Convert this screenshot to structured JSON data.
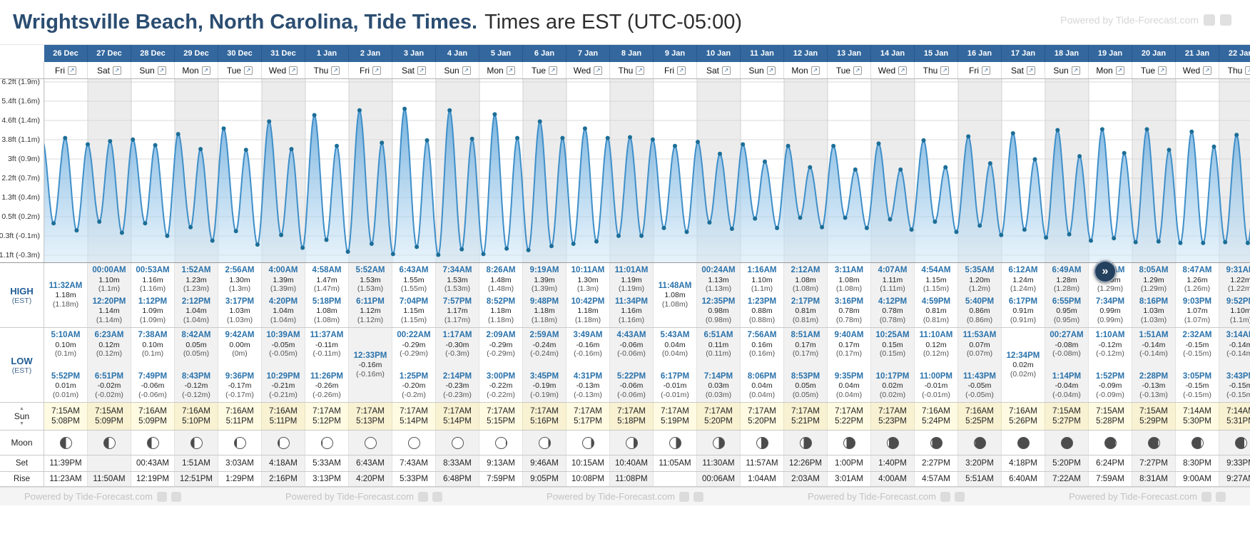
{
  "title": {
    "main": "Wrightsville Beach, North Carolina, Tide Times.",
    "suffix": "Times are EST (UTC-05:00)"
  },
  "powered_by": "Powered by Tide-Forecast.com",
  "labels": {
    "high": "HIGH",
    "low": "LOW",
    "est": "(EST)",
    "sun": "Sun",
    "moon": "Moon",
    "set": "Set",
    "rise": "Rise"
  },
  "scroll_right": "»",
  "chart": {
    "type": "area",
    "y_axis_labels": [
      "6.2ft (1.9m)",
      "5.4ft (1.6m)",
      "4.6ft (1.4m)",
      "3.8ft (1.1m)",
      "3ft (0.9m)",
      "2.2ft (0.7m)",
      "1.3ft (0.4m)",
      "0.5ft (0.2m)",
      "-0.3ft (-0.1m)",
      "-1.1ft (-0.3m)"
    ]
  },
  "days": [
    {
      "date": "26 Dec",
      "dow": "Fri",
      "highs": [
        {
          "time": "11:32AM",
          "v": "1.18m",
          "v2": "(1.18m)"
        }
      ],
      "lows": [
        {
          "time": "5:10AM",
          "v": "0.10m",
          "v2": "(0.1m)"
        },
        {
          "time": "5:52PM",
          "v": "0.01m",
          "v2": "(0.01m)"
        }
      ],
      "sun_rise": "7:15AM",
      "sun_set": "5:08PM",
      "moon": {
        "lit": 0.5,
        "waxing": true
      },
      "moon_set": "11:39PM",
      "moon_rise": "11:23AM"
    },
    {
      "date": "27 Dec",
      "dow": "Sat",
      "highs": [
        {
          "time": "00:00AM",
          "v": "1.10m",
          "v2": "(1.1m)"
        },
        {
          "time": "12:20PM",
          "v": "1.14m",
          "v2": "(1.14m)"
        }
      ],
      "lows": [
        {
          "time": "6:23AM",
          "v": "0.12m",
          "v2": "(0.12m)"
        },
        {
          "time": "6:51PM",
          "v": "-0.02m",
          "v2": "(-0.02m)"
        }
      ],
      "sun_rise": "7:15AM",
      "sun_set": "5:09PM",
      "moon": {
        "lit": 0.55,
        "waxing": true
      },
      "moon_set": "",
      "moon_rise": "11:50AM"
    },
    {
      "date": "28 Dec",
      "dow": "Sun",
      "highs": [
        {
          "time": "00:53AM",
          "v": "1.16m",
          "v2": "(1.16m)"
        },
        {
          "time": "1:12PM",
          "v": "1.09m",
          "v2": "(1.09m)"
        }
      ],
      "lows": [
        {
          "time": "7:38AM",
          "v": "0.10m",
          "v2": "(0.1m)"
        },
        {
          "time": "7:49PM",
          "v": "-0.06m",
          "v2": "(-0.06m)"
        }
      ],
      "sun_rise": "7:16AM",
      "sun_set": "5:09PM",
      "moon": {
        "lit": 0.63,
        "waxing": true
      },
      "moon_set": "00:43AM",
      "moon_rise": "12:19PM"
    },
    {
      "date": "29 Dec",
      "dow": "Mon",
      "highs": [
        {
          "time": "1:52AM",
          "v": "1.23m",
          "v2": "(1.23m)"
        },
        {
          "time": "2:12PM",
          "v": "1.04m",
          "v2": "(1.04m)"
        }
      ],
      "lows": [
        {
          "time": "8:42AM",
          "v": "0.05m",
          "v2": "(0.05m)"
        },
        {
          "time": "8:43PM",
          "v": "-0.12m",
          "v2": "(-0.12m)"
        }
      ],
      "sun_rise": "7:16AM",
      "sun_set": "5:10PM",
      "moon": {
        "lit": 0.71,
        "waxing": true
      },
      "moon_set": "1:51AM",
      "moon_rise": "12:51PM"
    },
    {
      "date": "30 Dec",
      "dow": "Tue",
      "highs": [
        {
          "time": "2:56AM",
          "v": "1.30m",
          "v2": "(1.3m)"
        },
        {
          "time": "3:17PM",
          "v": "1.03m",
          "v2": "(1.03m)"
        }
      ],
      "lows": [
        {
          "time": "9:42AM",
          "v": "0.00m",
          "v2": "(0m)"
        },
        {
          "time": "9:36PM",
          "v": "-0.17m",
          "v2": "(-0.17m)"
        }
      ],
      "sun_rise": "7:16AM",
      "sun_set": "5:11PM",
      "moon": {
        "lit": 0.79,
        "waxing": true
      },
      "moon_set": "3:03AM",
      "moon_rise": "1:29PM"
    },
    {
      "date": "31 Dec",
      "dow": "Wed",
      "highs": [
        {
          "time": "4:00AM",
          "v": "1.39m",
          "v2": "(1.39m)"
        },
        {
          "time": "4:20PM",
          "v": "1.04m",
          "v2": "(1.04m)"
        }
      ],
      "lows": [
        {
          "time": "10:39AM",
          "v": "-0.05m",
          "v2": "(-0.05m)"
        },
        {
          "time": "10:29PM",
          "v": "-0.21m",
          "v2": "(-0.21m)"
        }
      ],
      "sun_rise": "7:16AM",
      "sun_set": "5:11PM",
      "moon": {
        "lit": 0.87,
        "waxing": true
      },
      "moon_set": "4:18AM",
      "moon_rise": "2:16PM"
    },
    {
      "date": "1 Jan",
      "dow": "Thu",
      "highs": [
        {
          "time": "4:58AM",
          "v": "1.47m",
          "v2": "(1.47m)"
        },
        {
          "time": "5:18PM",
          "v": "1.08m",
          "v2": "(1.08m)"
        }
      ],
      "lows": [
        {
          "time": "11:37AM",
          "v": "-0.11m",
          "v2": "(-0.11m)"
        },
        {
          "time": "11:26PM",
          "v": "-0.26m",
          "v2": "(-0.26m)"
        }
      ],
      "sun_rise": "7:17AM",
      "sun_set": "5:12PM",
      "moon": {
        "lit": 0.94,
        "waxing": true
      },
      "moon_set": "5:33AM",
      "moon_rise": "3:13PM"
    },
    {
      "date": "2 Jan",
      "dow": "Fri",
      "highs": [
        {
          "time": "5:52AM",
          "v": "1.53m",
          "v2": "(1.53m)"
        },
        {
          "time": "6:11PM",
          "v": "1.12m",
          "v2": "(1.12m)"
        }
      ],
      "lows": [
        {
          "time": "12:33PM",
          "v": "-0.16m",
          "v2": "(-0.16m)"
        }
      ],
      "sun_rise": "7:17AM",
      "sun_set": "5:13PM",
      "moon": {
        "lit": 0.98,
        "waxing": true
      },
      "moon_set": "6:43AM",
      "moon_rise": "4:20PM"
    },
    {
      "date": "3 Jan",
      "dow": "Sat",
      "highs": [
        {
          "time": "6:43AM",
          "v": "1.55m",
          "v2": "(1.55m)"
        },
        {
          "time": "7:04PM",
          "v": "1.15m",
          "v2": "(1.15m)"
        }
      ],
      "lows": [
        {
          "time": "00:22AM",
          "v": "-0.29m",
          "v2": "(-0.29m)"
        },
        {
          "time": "1:25PM",
          "v": "-0.20m",
          "v2": "(-0.2m)"
        }
      ],
      "sun_rise": "7:17AM",
      "sun_set": "5:14PM",
      "moon": {
        "lit": 1.0,
        "waxing": true
      },
      "moon_set": "7:43AM",
      "moon_rise": "5:33PM"
    },
    {
      "date": "4 Jan",
      "dow": "Sun",
      "highs": [
        {
          "time": "7:34AM",
          "v": "1.53m",
          "v2": "(1.53m)"
        },
        {
          "time": "7:57PM",
          "v": "1.17m",
          "v2": "(1.17m)"
        }
      ],
      "lows": [
        {
          "time": "1:17AM",
          "v": "-0.30m",
          "v2": "(-0.3m)"
        },
        {
          "time": "2:14PM",
          "v": "-0.23m",
          "v2": "(-0.23m)"
        }
      ],
      "sun_rise": "7:17AM",
      "sun_set": "5:14PM",
      "moon": {
        "lit": 0.97,
        "waxing": false
      },
      "moon_set": "8:33AM",
      "moon_rise": "6:48PM"
    },
    {
      "date": "5 Jan",
      "dow": "Mon",
      "highs": [
        {
          "time": "8:26AM",
          "v": "1.48m",
          "v2": "(1.48m)"
        },
        {
          "time": "8:52PM",
          "v": "1.18m",
          "v2": "(1.18m)"
        }
      ],
      "lows": [
        {
          "time": "2:09AM",
          "v": "-0.29m",
          "v2": "(-0.29m)"
        },
        {
          "time": "3:00PM",
          "v": "-0.22m",
          "v2": "(-0.22m)"
        }
      ],
      "sun_rise": "7:17AM",
      "sun_set": "5:15PM",
      "moon": {
        "lit": 0.92,
        "waxing": false
      },
      "moon_set": "9:13AM",
      "moon_rise": "7:59PM"
    },
    {
      "date": "6 Jan",
      "dow": "Tue",
      "highs": [
        {
          "time": "9:19AM",
          "v": "1.39m",
          "v2": "(1.39m)"
        },
        {
          "time": "9:48PM",
          "v": "1.18m",
          "v2": "(1.18m)"
        }
      ],
      "lows": [
        {
          "time": "2:59AM",
          "v": "-0.24m",
          "v2": "(-0.24m)"
        },
        {
          "time": "3:45PM",
          "v": "-0.19m",
          "v2": "(-0.19m)"
        }
      ],
      "sun_rise": "7:17AM",
      "sun_set": "5:16PM",
      "moon": {
        "lit": 0.85,
        "waxing": false
      },
      "moon_set": "9:46AM",
      "moon_rise": "9:05PM"
    },
    {
      "date": "7 Jan",
      "dow": "Wed",
      "highs": [
        {
          "time": "10:11AM",
          "v": "1.30m",
          "v2": "(1.3m)"
        },
        {
          "time": "10:42PM",
          "v": "1.18m",
          "v2": "(1.18m)"
        }
      ],
      "lows": [
        {
          "time": "3:49AM",
          "v": "-0.16m",
          "v2": "(-0.16m)"
        },
        {
          "time": "4:31PM",
          "v": "-0.13m",
          "v2": "(-0.13m)"
        }
      ],
      "sun_rise": "7:17AM",
      "sun_set": "5:17PM",
      "moon": {
        "lit": 0.76,
        "waxing": false
      },
      "moon_set": "10:15AM",
      "moon_rise": "10:08PM"
    },
    {
      "date": "8 Jan",
      "dow": "Thu",
      "highs": [
        {
          "time": "11:01AM",
          "v": "1.19m",
          "v2": "(1.19m)"
        },
        {
          "time": "11:34PM",
          "v": "1.16m",
          "v2": "(1.16m)"
        }
      ],
      "lows": [
        {
          "time": "4:43AM",
          "v": "-0.06m",
          "v2": "(-0.06m)"
        },
        {
          "time": "5:22PM",
          "v": "-0.06m",
          "v2": "(-0.06m)"
        }
      ],
      "sun_rise": "7:17AM",
      "sun_set": "5:18PM",
      "moon": {
        "lit": 0.66,
        "waxing": false
      },
      "moon_set": "10:40AM",
      "moon_rise": "11:08PM"
    },
    {
      "date": "9 Jan",
      "dow": "Fri",
      "highs": [
        {
          "time": "11:48AM",
          "v": "1.08m",
          "v2": "(1.08m)"
        }
      ],
      "lows": [
        {
          "time": "5:43AM",
          "v": "0.04m",
          "v2": "(0.04m)"
        },
        {
          "time": "6:17PM",
          "v": "-0.01m",
          "v2": "(-0.01m)"
        }
      ],
      "sun_rise": "7:17AM",
      "sun_set": "5:19PM",
      "moon": {
        "lit": 0.56,
        "waxing": false
      },
      "moon_set": "11:05AM",
      "moon_rise": ""
    },
    {
      "date": "10 Jan",
      "dow": "Sat",
      "highs": [
        {
          "time": "00:24AM",
          "v": "1.13m",
          "v2": "(1.13m)"
        },
        {
          "time": "12:35PM",
          "v": "0.98m",
          "v2": "(0.98m)"
        }
      ],
      "lows": [
        {
          "time": "6:51AM",
          "v": "0.11m",
          "v2": "(0.11m)"
        },
        {
          "time": "7:14PM",
          "v": "0.03m",
          "v2": "(0.03m)"
        }
      ],
      "sun_rise": "7:17AM",
      "sun_set": "5:20PM",
      "moon": {
        "lit": 0.5,
        "waxing": false
      },
      "moon_set": "11:30AM",
      "moon_rise": "00:06AM"
    },
    {
      "date": "11 Jan",
      "dow": "Sun",
      "highs": [
        {
          "time": "1:16AM",
          "v": "1.10m",
          "v2": "(1.1m)"
        },
        {
          "time": "1:23PM",
          "v": "0.88m",
          "v2": "(0.88m)"
        }
      ],
      "lows": [
        {
          "time": "7:56AM",
          "v": "0.16m",
          "v2": "(0.16m)"
        },
        {
          "time": "8:06PM",
          "v": "0.04m",
          "v2": "(0.04m)"
        }
      ],
      "sun_rise": "7:17AM",
      "sun_set": "5:20PM",
      "moon": {
        "lit": 0.4,
        "waxing": false
      },
      "moon_set": "11:57AM",
      "moon_rise": "1:04AM"
    },
    {
      "date": "12 Jan",
      "dow": "Mon",
      "highs": [
        {
          "time": "2:12AM",
          "v": "1.08m",
          "v2": "(1.08m)"
        },
        {
          "time": "2:17PM",
          "v": "0.81m",
          "v2": "(0.81m)"
        }
      ],
      "lows": [
        {
          "time": "8:51AM",
          "v": "0.17m",
          "v2": "(0.17m)"
        },
        {
          "time": "8:53PM",
          "v": "0.05m",
          "v2": "(0.05m)"
        }
      ],
      "sun_rise": "7:17AM",
      "sun_set": "5:21PM",
      "moon": {
        "lit": 0.3,
        "waxing": false
      },
      "moon_set": "12:26PM",
      "moon_rise": "2:03AM"
    },
    {
      "date": "13 Jan",
      "dow": "Tue",
      "highs": [
        {
          "time": "3:11AM",
          "v": "1.08m",
          "v2": "(1.08m)"
        },
        {
          "time": "3:16PM",
          "v": "0.78m",
          "v2": "(0.78m)"
        }
      ],
      "lows": [
        {
          "time": "9:40AM",
          "v": "0.17m",
          "v2": "(0.17m)"
        },
        {
          "time": "9:35PM",
          "v": "0.04m",
          "v2": "(0.04m)"
        }
      ],
      "sun_rise": "7:17AM",
      "sun_set": "5:22PM",
      "moon": {
        "lit": 0.22,
        "waxing": false
      },
      "moon_set": "1:00PM",
      "moon_rise": "3:01AM"
    },
    {
      "date": "14 Jan",
      "dow": "Wed",
      "highs": [
        {
          "time": "4:07AM",
          "v": "1.11m",
          "v2": "(1.11m)"
        },
        {
          "time": "4:12PM",
          "v": "0.78m",
          "v2": "(0.78m)"
        }
      ],
      "lows": [
        {
          "time": "10:25AM",
          "v": "0.15m",
          "v2": "(0.15m)"
        },
        {
          "time": "10:17PM",
          "v": "0.02m",
          "v2": "(0.02m)"
        }
      ],
      "sun_rise": "7:17AM",
      "sun_set": "5:23PM",
      "moon": {
        "lit": 0.15,
        "waxing": false
      },
      "moon_set": "1:40PM",
      "moon_rise": "4:00AM"
    },
    {
      "date": "15 Jan",
      "dow": "Thu",
      "highs": [
        {
          "time": "4:54AM",
          "v": "1.15m",
          "v2": "(1.15m)"
        },
        {
          "time": "4:59PM",
          "v": "0.81m",
          "v2": "(0.81m)"
        }
      ],
      "lows": [
        {
          "time": "11:10AM",
          "v": "0.12m",
          "v2": "(0.12m)"
        },
        {
          "time": "11:00PM",
          "v": "-0.01m",
          "v2": "(-0.01m)"
        }
      ],
      "sun_rise": "7:16AM",
      "sun_set": "5:24PM",
      "moon": {
        "lit": 0.09,
        "waxing": false
      },
      "moon_set": "2:27PM",
      "moon_rise": "4:57AM"
    },
    {
      "date": "16 Jan",
      "dow": "Fri",
      "highs": [
        {
          "time": "5:35AM",
          "v": "1.20m",
          "v2": "(1.2m)"
        },
        {
          "time": "5:40PM",
          "v": "0.86m",
          "v2": "(0.86m)"
        }
      ],
      "lows": [
        {
          "time": "11:53AM",
          "v": "0.07m",
          "v2": "(0.07m)"
        },
        {
          "time": "11:43PM",
          "v": "-0.05m",
          "v2": "(-0.05m)"
        }
      ],
      "sun_rise": "7:16AM",
      "sun_set": "5:25PM",
      "moon": {
        "lit": 0.04,
        "waxing": false
      },
      "moon_set": "3:20PM",
      "moon_rise": "5:51AM"
    },
    {
      "date": "17 Jan",
      "dow": "Sat",
      "highs": [
        {
          "time": "6:12AM",
          "v": "1.24m",
          "v2": "(1.24m)"
        },
        {
          "time": "6:17PM",
          "v": "0.91m",
          "v2": "(0.91m)"
        }
      ],
      "lows": [
        {
          "time": "12:34PM",
          "v": "0.02m",
          "v2": "(0.02m)"
        }
      ],
      "sun_rise": "7:16AM",
      "sun_set": "5:26PM",
      "moon": {
        "lit": 0.01,
        "waxing": false
      },
      "moon_set": "4:18PM",
      "moon_rise": "6:40AM"
    },
    {
      "date": "18 Jan",
      "dow": "Sun",
      "highs": [
        {
          "time": "6:49AM",
          "v": "1.28m",
          "v2": "(1.28m)"
        },
        {
          "time": "6:55PM",
          "v": "0.95m",
          "v2": "(0.95m)"
        }
      ],
      "lows": [
        {
          "time": "00:27AM",
          "v": "-0.08m",
          "v2": "(-0.08m)"
        },
        {
          "time": "1:14PM",
          "v": "-0.04m",
          "v2": "(-0.04m)"
        }
      ],
      "sun_rise": "7:15AM",
      "sun_set": "5:27PM",
      "moon": {
        "lit": 0.0,
        "waxing": true
      },
      "moon_set": "5:20PM",
      "moon_rise": "7:22AM"
    },
    {
      "date": "19 Jan",
      "dow": "Mon",
      "highs": [
        {
          "time": "7:26AM",
          "v": "1.29m",
          "v2": "(1.29m)"
        },
        {
          "time": "7:34PM",
          "v": "0.99m",
          "v2": "(0.99m)"
        }
      ],
      "lows": [
        {
          "time": "1:10AM",
          "v": "-0.12m",
          "v2": "(-0.12m)"
        },
        {
          "time": "1:52PM",
          "v": "-0.09m",
          "v2": "(-0.09m)"
        }
      ],
      "sun_rise": "7:15AM",
      "sun_set": "5:28PM",
      "moon": {
        "lit": 0.04,
        "waxing": true
      },
      "moon_set": "6:24PM",
      "moon_rise": "7:59AM"
    },
    {
      "date": "20 Jan",
      "dow": "Tue",
      "highs": [
        {
          "time": "8:05AM",
          "v": "1.29m",
          "v2": "(1.29m)"
        },
        {
          "time": "8:16PM",
          "v": "1.03m",
          "v2": "(1.03m)"
        }
      ],
      "lows": [
        {
          "time": "1:51AM",
          "v": "-0.14m",
          "v2": "(-0.14m)"
        },
        {
          "time": "2:28PM",
          "v": "-0.13m",
          "v2": "(-0.13m)"
        }
      ],
      "sun_rise": "7:15AM",
      "sun_set": "5:29PM",
      "moon": {
        "lit": 0.09,
        "waxing": true
      },
      "moon_set": "7:27PM",
      "moon_rise": "8:31AM"
    },
    {
      "date": "21 Jan",
      "dow": "Wed",
      "highs": [
        {
          "time": "8:47AM",
          "v": "1.26m",
          "v2": "(1.26m)"
        },
        {
          "time": "9:03PM",
          "v": "1.07m",
          "v2": "(1.07m)"
        }
      ],
      "lows": [
        {
          "time": "2:32AM",
          "v": "-0.15m",
          "v2": "(-0.15m)"
        },
        {
          "time": "3:05PM",
          "v": "-0.15m",
          "v2": "(-0.15m)"
        }
      ],
      "sun_rise": "7:14AM",
      "sun_set": "5:30PM",
      "moon": {
        "lit": 0.15,
        "waxing": true
      },
      "moon_set": "8:30PM",
      "moon_rise": "9:00AM"
    },
    {
      "date": "22 Jan",
      "dow": "Thu",
      "highs": [
        {
          "time": "9:31AM",
          "v": "1.22m",
          "v2": "(1.22m)"
        },
        {
          "time": "9:52PM",
          "v": "1.10m",
          "v2": "(1.1m)"
        }
      ],
      "lows": [
        {
          "time": "3:14AM",
          "v": "-0.14m",
          "v2": "(-0.14m)"
        },
        {
          "time": "3:43PM",
          "v": "-0.15m",
          "v2": "(-0.15m)"
        }
      ],
      "sun_rise": "7:14AM",
      "sun_set": "5:31PM",
      "moon": {
        "lit": 0.21,
        "waxing": true
      },
      "moon_set": "9:33PM",
      "moon_rise": "9:27AM"
    }
  ]
}
